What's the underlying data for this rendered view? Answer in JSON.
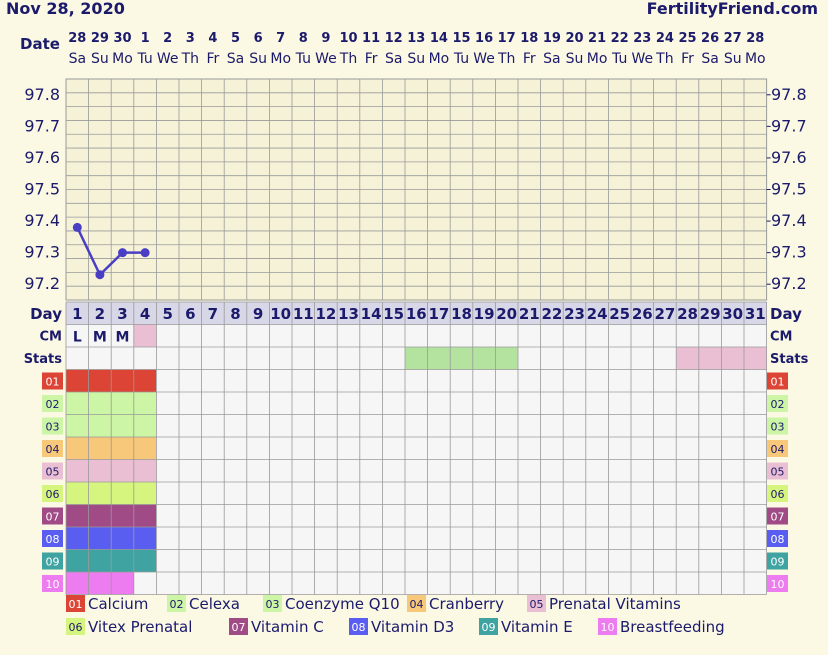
{
  "header": {
    "date_text": "Nov 28, 2020",
    "site": "FertilityFriend.com",
    "date_label": "Date"
  },
  "date_columns": [
    {
      "d": "28",
      "w": "Sa"
    },
    {
      "d": "29",
      "w": "Su"
    },
    {
      "d": "30",
      "w": "Mo"
    },
    {
      "d": "1",
      "w": "Tu"
    },
    {
      "d": "2",
      "w": "We"
    },
    {
      "d": "3",
      "w": "Th"
    },
    {
      "d": "4",
      "w": "Fr"
    },
    {
      "d": "5",
      "w": "Sa"
    },
    {
      "d": "6",
      "w": "Su"
    },
    {
      "d": "7",
      "w": "Mo"
    },
    {
      "d": "8",
      "w": "Tu"
    },
    {
      "d": "9",
      "w": "We"
    },
    {
      "d": "10",
      "w": "Th"
    },
    {
      "d": "11",
      "w": "Fr"
    },
    {
      "d": "12",
      "w": "Sa"
    },
    {
      "d": "13",
      "w": "Su"
    },
    {
      "d": "14",
      "w": "Mo"
    },
    {
      "d": "15",
      "w": "Tu"
    },
    {
      "d": "16",
      "w": "We"
    },
    {
      "d": "17",
      "w": "Th"
    },
    {
      "d": "18",
      "w": "Fr"
    },
    {
      "d": "19",
      "w": "Sa"
    },
    {
      "d": "20",
      "w": "Su"
    },
    {
      "d": "21",
      "w": "Mo"
    },
    {
      "d": "22",
      "w": "Tu"
    },
    {
      "d": "23",
      "w": "We"
    },
    {
      "d": "24",
      "w": "Th"
    },
    {
      "d": "25",
      "w": "Fr"
    },
    {
      "d": "26",
      "w": "Sa"
    },
    {
      "d": "27",
      "w": "Su"
    },
    {
      "d": "28",
      "w": "Mo"
    }
  ],
  "chart_data": {
    "type": "line",
    "x": [
      1,
      2,
      3,
      4
    ],
    "series": [
      {
        "values": [
          97.38,
          97.23,
          97.3,
          97.3
        ]
      }
    ],
    "yticks": [
      97.2,
      97.3,
      97.4,
      97.5,
      97.6,
      97.7,
      97.8
    ],
    "ylim": [
      97.15,
      97.85
    ],
    "day_count": 31,
    "line_color": "#4a3fc4",
    "grid": true
  },
  "rows": {
    "day_label": "Day",
    "cm_label": "CM",
    "stats_label": "Stats",
    "days": [
      "1",
      "2",
      "3",
      "4",
      "5",
      "6",
      "7",
      "8",
      "9",
      "10",
      "11",
      "12",
      "13",
      "14",
      "15",
      "16",
      "17",
      "18",
      "19",
      "20",
      "21",
      "22",
      "23",
      "24",
      "25",
      "26",
      "27",
      "28",
      "29",
      "30",
      "31"
    ],
    "cm": [
      "L",
      "M",
      "M",
      ""
    ],
    "cm_highlight_day": 4,
    "cm_highlight_color": "#ebbfd3",
    "stats_bands": [
      {
        "from": 16,
        "to": 20,
        "color": "#b4e3a0"
      },
      {
        "from": 28,
        "to": 31,
        "color": "#ebbfd3"
      }
    ]
  },
  "meds": [
    {
      "code": "01",
      "name": "Calcium",
      "color": "#dc4535",
      "days": 4
    },
    {
      "code": "02",
      "name": "Celexa",
      "color": "#ccf5a5",
      "days": 4
    },
    {
      "code": "03",
      "name": "Coenzyme Q10",
      "color": "#ccf5a5",
      "days": 4
    },
    {
      "code": "04",
      "name": "Cranberry",
      "color": "#f7c77a",
      "days": 4
    },
    {
      "code": "05",
      "name": "Prenatal Vitamins",
      "color": "#ebbfd3",
      "days": 4
    },
    {
      "code": "06",
      "name": "Vitex Prenatal",
      "color": "#d5f57f",
      "days": 4
    },
    {
      "code": "07",
      "name": "Vitamin C",
      "color": "#a04a86",
      "days": 4
    },
    {
      "code": "08",
      "name": "Vitamin D3",
      "color": "#5a5ef0",
      "days": 4
    },
    {
      "code": "09",
      "name": "Vitamin E",
      "color": "#3fa3a1",
      "days": 4
    },
    {
      "code": "10",
      "name": "Breastfeeding",
      "color": "#ec7cf0",
      "days": 3
    }
  ],
  "colors": {
    "navy": "#1b1a6b",
    "grid": "#9a9a9a",
    "chart_bg": "#f5f2d8",
    "row_bg": "#f6f6f6",
    "day_row_bg": "#d8d7e8"
  }
}
